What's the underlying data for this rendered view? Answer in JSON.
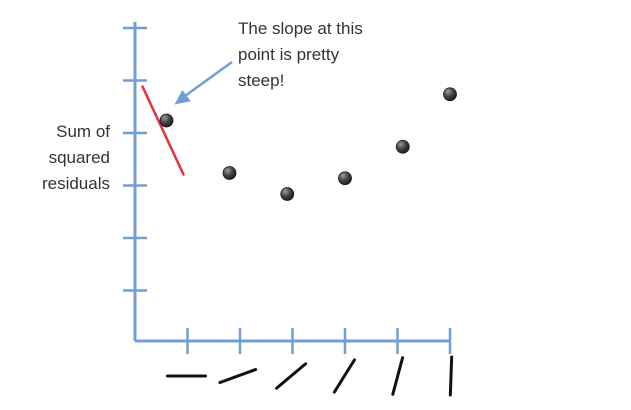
{
  "chart_data": {
    "type": "scatter",
    "title": "",
    "xlabel": "",
    "ylabel_lines": [
      "Sum of",
      "squared",
      "residuals"
    ],
    "x_ticks": 6,
    "y_ticks": 6,
    "points": [
      {
        "x": 0.6,
        "y": 4.2
      },
      {
        "x": 1.8,
        "y": 3.2
      },
      {
        "x": 2.9,
        "y": 2.8
      },
      {
        "x": 4.0,
        "y": 3.1
      },
      {
        "x": 5.1,
        "y": 3.7
      },
      {
        "x": 6.0,
        "y": 4.7
      }
    ],
    "slope_symbol_angles_deg": [
      0,
      -20,
      -40,
      -58,
      -75,
      -88
    ],
    "annotation": {
      "lines": [
        "The slope at this",
        "point is pretty",
        "steep!"
      ],
      "points_to_index": 0
    },
    "colors": {
      "axis": "#6f9fd4",
      "point": "#3a3a3a",
      "tangent": "#e8303a",
      "arrow": "#6f9fd4",
      "text": "#333333",
      "slope_symbol": "#111111"
    }
  }
}
